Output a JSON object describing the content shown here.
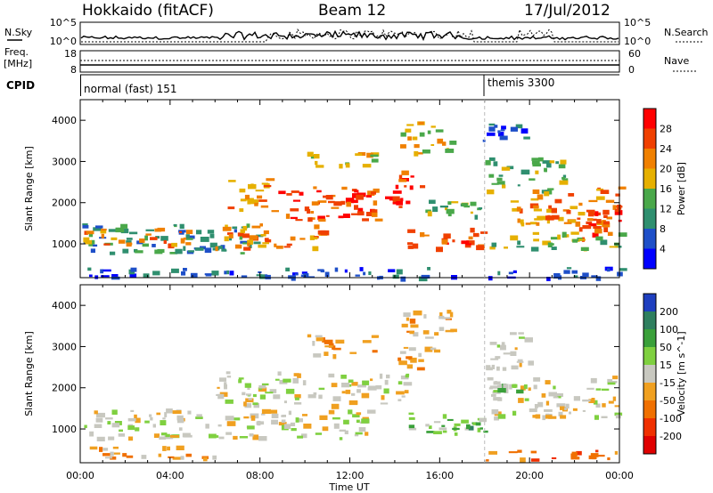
{
  "header": {
    "radar": "Hokkaido (fitACF)",
    "beam": "Beam 12",
    "date": "17/Jul/2012"
  },
  "top_panels": {
    "nsky_label": "N.Sky",
    "nsky_ticks": [
      "10^5",
      "10^0"
    ],
    "nsearch_label": "N.Search",
    "nsearch_ticks": [
      "10^5",
      "10^0"
    ],
    "freq_label_1": "Freq.",
    "freq_label_2": "[MHz]",
    "freq_ticks": [
      "18",
      "8"
    ],
    "nave_label": "Nave",
    "nave_ticks": [
      "60",
      "0"
    ],
    "cpid_label": "CPID",
    "cpid_segments": [
      {
        "label": "normal (fast) 151",
        "start_hour": 0
      },
      {
        "label": "themis 3300",
        "start_hour": 18
      }
    ]
  },
  "chart_data": [
    {
      "type": "heatmap",
      "quantity": "power",
      "xlabel": "",
      "ylabel": "Slant Range [km]",
      "x_ticks": [
        "00:00",
        "04:00",
        "08:00",
        "12:00",
        "16:00",
        "20:00",
        "00:00"
      ],
      "x_range_hours": [
        0,
        24
      ],
      "y_ticks": [
        1000,
        2000,
        3000,
        4000
      ],
      "y_range_km": [
        180,
        4500
      ],
      "colorbar_label": "Power [dB]",
      "colorbar_ticks": [
        4,
        8,
        12,
        16,
        20,
        24,
        28
      ],
      "colorbar_colors": [
        "#0000ff",
        "#1e4fc8",
        "#2f8f6f",
        "#4aa84a",
        "#e6b000",
        "#f08000",
        "#f04000",
        "#ff0000"
      ],
      "regions": [
        {
          "t0": 0,
          "t1": 8,
          "r0": 800,
          "r1": 1500,
          "level": 2
        },
        {
          "t0": 0,
          "t1": 5,
          "r0": 1000,
          "r1": 1400,
          "level": 5
        },
        {
          "t0": 6,
          "t1": 11,
          "r0": 900,
          "r1": 1500,
          "level": 5
        },
        {
          "t0": 6.5,
          "t1": 8.5,
          "r0": 1800,
          "r1": 2600,
          "level": 5
        },
        {
          "t0": 8.5,
          "t1": 14,
          "r0": 1600,
          "r1": 2400,
          "level": 6
        },
        {
          "t0": 12,
          "t1": 14.5,
          "r0": 1900,
          "r1": 2300,
          "level": 7
        },
        {
          "t0": 14,
          "t1": 15.5,
          "r0": 2400,
          "r1": 2900,
          "level": 6
        },
        {
          "t0": 14.2,
          "t1": 16.5,
          "r0": 3200,
          "r1": 4000,
          "level": 4
        },
        {
          "t0": 14.5,
          "t1": 18,
          "r0": 900,
          "r1": 1400,
          "level": 6
        },
        {
          "t0": 15,
          "t1": 18,
          "r0": 1700,
          "r1": 2200,
          "level": 3
        },
        {
          "t0": 18,
          "t1": 21.5,
          "r0": 2300,
          "r1": 3100,
          "level": 3
        },
        {
          "t0": 19,
          "t1": 24,
          "r0": 1500,
          "r1": 2400,
          "level": 5
        },
        {
          "t0": 22,
          "t1": 24,
          "r0": 1100,
          "r1": 1900,
          "level": 6
        },
        {
          "t0": 18,
          "t1": 24,
          "r0": 900,
          "r1": 1300,
          "level": 3
        },
        {
          "t0": 0,
          "t1": 24,
          "r0": 200,
          "r1": 450,
          "level": 1
        },
        {
          "t0": 10,
          "t1": 13,
          "r0": 2900,
          "r1": 3300,
          "level": 4
        },
        {
          "t0": 17.8,
          "t1": 20,
          "r0": 3500,
          "r1": 4000,
          "level": 1
        }
      ]
    },
    {
      "type": "heatmap",
      "quantity": "velocity",
      "xlabel": "Time UT",
      "ylabel": "Slant Range [km]",
      "x_ticks": [
        "00:00",
        "04:00",
        "08:00",
        "12:00",
        "16:00",
        "20:00",
        "00:00"
      ],
      "x_range_hours": [
        0,
        24
      ],
      "y_ticks": [
        1000,
        2000,
        3000,
        4000
      ],
      "y_range_km": [
        180,
        4500
      ],
      "colorbar_label": "Velocity [m s^-1]",
      "colorbar_ticks": [
        200,
        100,
        50,
        15,
        -15,
        -50,
        -100,
        -200
      ],
      "colorbar_colors": [
        "#1e3fbf",
        "#2f7f5f",
        "#3aa03a",
        "#7fd040",
        "#c8c8c0",
        "#f0a020",
        "#f07000",
        "#f03000",
        "#e00000"
      ],
      "regions": [
        {
          "t0": 0,
          "t1": 13,
          "r0": 800,
          "r1": 1500,
          "level": 4
        },
        {
          "t0": 6,
          "t1": 14.5,
          "r0": 1600,
          "r1": 2400,
          "level": 4
        },
        {
          "t0": 14,
          "t1": 16,
          "r0": 2400,
          "r1": 3000,
          "level": 5
        },
        {
          "t0": 14.5,
          "t1": 18,
          "r0": 900,
          "r1": 1400,
          "level": 3
        },
        {
          "t0": 16.5,
          "t1": 18,
          "r0": 1000,
          "r1": 1200,
          "level": 2
        },
        {
          "t0": 18,
          "t1": 24,
          "r0": 1300,
          "r1": 2300,
          "level": 4
        },
        {
          "t0": 18,
          "t1": 20,
          "r0": 2500,
          "r1": 3400,
          "level": 4
        },
        {
          "t0": 14,
          "t1": 16.5,
          "r0": 3200,
          "r1": 3900,
          "level": 5
        },
        {
          "t0": 18,
          "t1": 24,
          "r0": 250,
          "r1": 500,
          "level": 6
        },
        {
          "t0": 0,
          "t1": 6,
          "r0": 300,
          "r1": 600,
          "level": 5
        },
        {
          "t0": 10,
          "t1": 13,
          "r0": 2800,
          "r1": 3300,
          "level": 5
        },
        {
          "t0": 18.5,
          "t1": 19.5,
          "r0": 1900,
          "r1": 2200,
          "level": 3
        }
      ]
    }
  ]
}
